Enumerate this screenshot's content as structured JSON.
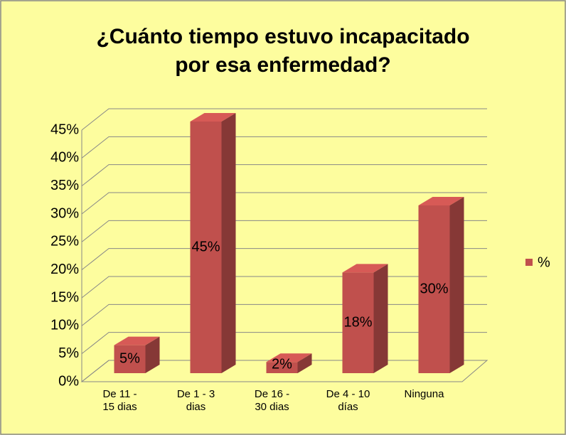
{
  "chart_data": {
    "type": "bar3d",
    "title": "¿Cuánto tiempo estuvo incapacitado por esa enfermedad?",
    "categories": [
      "De 11 - 15 dias",
      "De 1 - 3 dias",
      "De 16 - 30 dias",
      "De 4 - 10 días",
      "Ninguna"
    ],
    "series": [
      {
        "name": "%",
        "color": "#c0504d",
        "values": [
          5,
          45,
          2,
          18,
          30
        ],
        "value_labels": [
          "5%",
          "45%",
          "2%",
          "18%",
          "30%"
        ]
      }
    ],
    "ylim": [
      0,
      45
    ],
    "yticks": [
      {
        "value": 0,
        "label": "0%"
      },
      {
        "value": 5,
        "label": "5%"
      },
      {
        "value": 10,
        "label": "10%"
      },
      {
        "value": 15,
        "label": "15%"
      },
      {
        "value": 20,
        "label": "20%"
      },
      {
        "value": 25,
        "label": "25%"
      },
      {
        "value": 30,
        "label": "30%"
      },
      {
        "value": 35,
        "label": "35%"
      },
      {
        "value": 40,
        "label": "40%"
      },
      {
        "value": 45,
        "label": "45%"
      }
    ],
    "grid": true,
    "legend": "right"
  }
}
